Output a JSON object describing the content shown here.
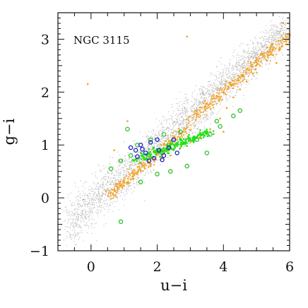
{
  "chart_data": {
    "type": "scatter",
    "title": "",
    "annotation": "NGC 3115",
    "xlabel": "u−i",
    "ylabel": "g−i",
    "xlim": [
      -1,
      6
    ],
    "ylim": [
      -1,
      3.5
    ],
    "x_ticks": [
      {
        "value": 0,
        "label": "0"
      },
      {
        "value": 2,
        "label": "2"
      },
      {
        "value": 4,
        "label": "4"
      },
      {
        "value": 6,
        "label": "6"
      }
    ],
    "y_ticks": [
      {
        "value": -1,
        "label": "−1"
      },
      {
        "value": 0,
        "label": "0"
      },
      {
        "value": 1,
        "label": "1"
      },
      {
        "value": 2,
        "label": "2"
      },
      {
        "value": 3,
        "label": "3"
      }
    ],
    "grid": false,
    "legend": "none",
    "colors": {
      "background_points": "#b9b9b9",
      "orange_points": "#f5a020",
      "green_points": "#22e01a",
      "green_circles": "#2fc02a",
      "blue_circles": "#1c1cc8"
    },
    "series": [
      {
        "color": "#f5a020",
        "marker": "dot",
        "points": [
          [
            0.8,
            0.18
          ],
          [
            1.0,
            0.3
          ],
          [
            1.2,
            0.35
          ],
          [
            1.5,
            0.5
          ],
          [
            1.8,
            0.6
          ],
          [
            2.1,
            0.72
          ],
          [
            2.4,
            0.8
          ],
          [
            2.7,
            0.95
          ],
          [
            3.0,
            1.05
          ],
          [
            3.3,
            1.15
          ],
          [
            3.6,
            1.3
          ],
          [
            3.9,
            1.5
          ],
          [
            4.1,
            1.7
          ],
          [
            4.3,
            1.9
          ],
          [
            4.5,
            2.05
          ],
          [
            4.7,
            2.2
          ],
          [
            4.9,
            2.35
          ],
          [
            5.1,
            2.5
          ],
          [
            5.3,
            2.6
          ],
          [
            5.5,
            2.7
          ],
          [
            5.7,
            2.8
          ],
          [
            5.9,
            2.9
          ],
          [
            0.6,
            0.1
          ],
          [
            1.3,
            0.45
          ],
          [
            2.0,
            0.85
          ],
          [
            2.6,
            1.1
          ],
          [
            3.4,
            1.2
          ],
          [
            4.6,
            2.3
          ],
          [
            5.0,
            2.65
          ],
          [
            5.6,
            2.55
          ],
          [
            -0.1,
            2.15
          ],
          [
            0.7,
            0.9
          ],
          [
            2.9,
            3.05
          ],
          [
            5.8,
            3.3
          ],
          [
            4.0,
            1.25
          ],
          [
            1.1,
            1.45
          ]
        ]
      },
      {
        "color": "#22e01a",
        "marker": "dot",
        "points": [
          [
            1.6,
            0.75
          ],
          [
            1.8,
            0.8
          ],
          [
            2.0,
            0.85
          ],
          [
            2.2,
            0.9
          ],
          [
            2.4,
            0.95
          ],
          [
            2.6,
            1.0
          ],
          [
            2.8,
            1.05
          ],
          [
            3.0,
            1.1
          ],
          [
            3.2,
            1.15
          ],
          [
            3.4,
            1.2
          ],
          [
            1.9,
            0.95
          ],
          [
            2.3,
            1.0
          ],
          [
            2.7,
            1.12
          ],
          [
            3.1,
            1.05
          ],
          [
            1.5,
            0.85
          ],
          [
            2.1,
            0.78
          ],
          [
            2.5,
            0.9
          ],
          [
            2.9,
            0.98
          ],
          [
            3.3,
            1.28
          ],
          [
            1.3,
            0.7
          ]
        ]
      },
      {
        "color": "#2fc02a",
        "marker": "open-circle",
        "points": [
          [
            0.6,
            0.55
          ],
          [
            0.9,
            0.7
          ],
          [
            1.2,
            0.8
          ],
          [
            1.4,
            1.0
          ],
          [
            1.8,
            1.1
          ],
          [
            2.2,
            1.2
          ],
          [
            2.7,
            1.25
          ],
          [
            3.2,
            1.1
          ],
          [
            3.6,
            1.2
          ],
          [
            3.9,
            1.35
          ],
          [
            4.3,
            1.55
          ],
          [
            4.5,
            1.65
          ],
          [
            2.9,
            0.6
          ],
          [
            2.4,
            0.5
          ],
          [
            1.5,
            0.3
          ],
          [
            0.9,
            -0.45
          ],
          [
            3.5,
            0.85
          ],
          [
            2.0,
            0.45
          ],
          [
            1.1,
            1.3
          ],
          [
            3.8,
            1.45
          ]
        ]
      },
      {
        "color": "#1c1cc8",
        "marker": "open-circle",
        "points": [
          [
            1.2,
            0.95
          ],
          [
            1.35,
            0.9
          ],
          [
            1.5,
            1.0
          ],
          [
            1.65,
            0.85
          ],
          [
            1.8,
            1.05
          ],
          [
            1.9,
            0.75
          ],
          [
            2.05,
            0.9
          ],
          [
            2.2,
            0.8
          ],
          [
            2.35,
            0.95
          ],
          [
            2.5,
            1.1
          ],
          [
            2.6,
            0.85
          ],
          [
            1.4,
            0.78
          ],
          [
            2.0,
            1.1
          ],
          [
            2.15,
            0.72
          ],
          [
            1.55,
            0.92
          ],
          [
            1.75,
            0.7
          ]
        ]
      }
    ]
  }
}
